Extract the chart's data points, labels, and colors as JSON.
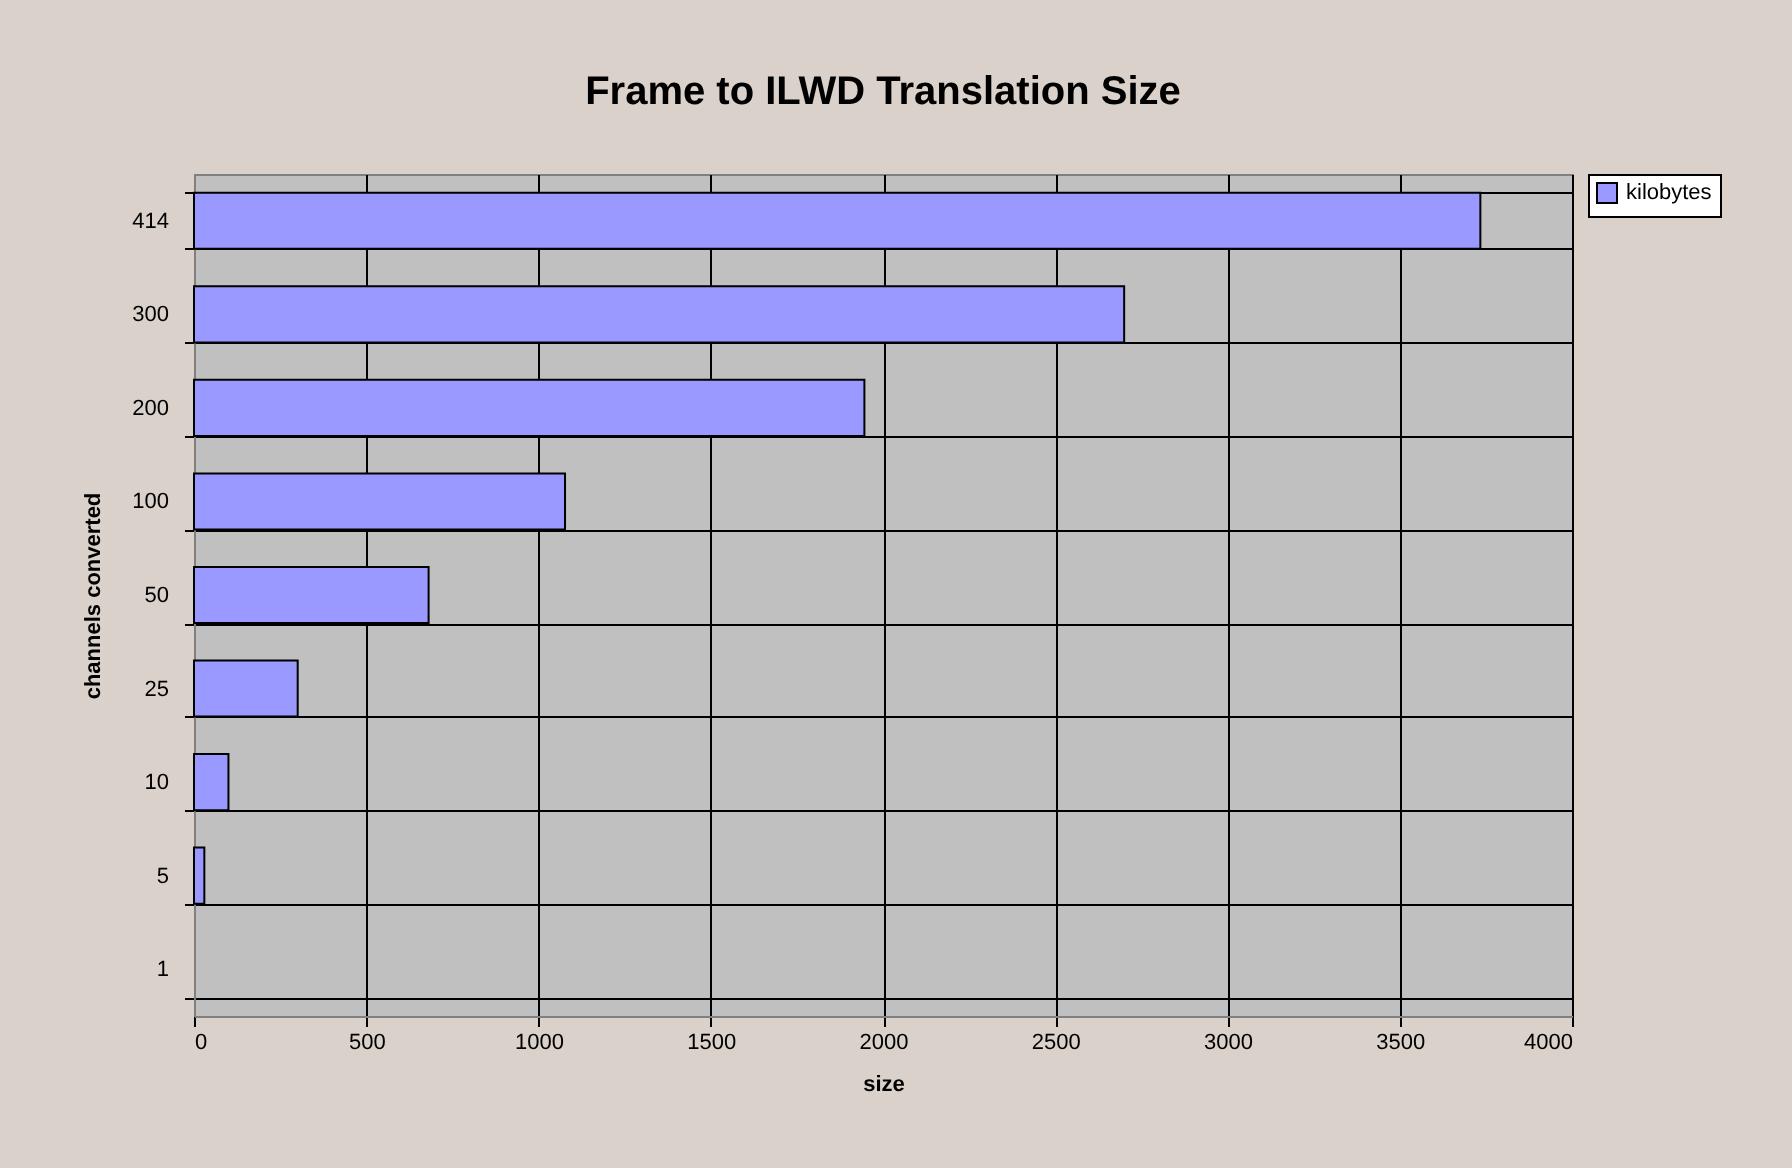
{
  "chart_data": {
    "type": "bar",
    "orientation": "horizontal",
    "title": "Frame to ILWD Translation Size",
    "xlabel": "size",
    "ylabel": "channels converted",
    "categories": [
      "414",
      "300",
      "200",
      "100",
      "50",
      "25",
      "10",
      "5",
      "1"
    ],
    "series": [
      {
        "name": "kilobytes",
        "color": "#9999ff",
        "values": [
          3734,
          2700,
          1946,
          1077,
          681,
          301,
          100,
          30,
          null
        ]
      }
    ],
    "xlim": [
      0,
      4000
    ],
    "xticks": [
      0,
      500,
      1000,
      1500,
      2000,
      2500,
      3000,
      3500,
      4000
    ],
    "grid": true,
    "legend": "right"
  }
}
